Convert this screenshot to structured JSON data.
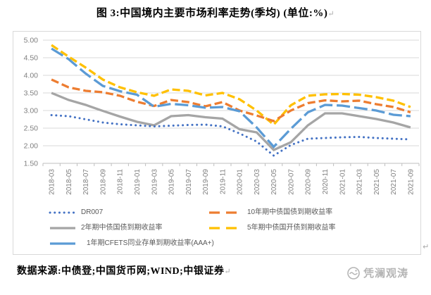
{
  "page": {
    "title": "图 3:中国境内主要市场利率走势(季均) (单位:%)",
    "paragraph_mark": "↵"
  },
  "chart_data": {
    "type": "line",
    "title": "中国境内主要市场利率走势(季均)",
    "unit": "%",
    "ylim": [
      1.5,
      5.0
    ],
    "y_ticks": [
      "5.00",
      "4.50",
      "4.00",
      "3.50",
      "3.00",
      "2.50",
      "2.00",
      "1.50"
    ],
    "grid": "horizontal",
    "legend_position": "bottom",
    "x_labels": [
      "2018-03",
      "2018-05",
      "2018-07",
      "2018-09",
      "2018-11",
      "2019-01",
      "2019-03",
      "2019-05",
      "2019-07",
      "2019-09",
      "2019-11",
      "2020-01",
      "2020-03",
      "2020-05",
      "2020-07",
      "2020-09",
      "2020-11",
      "2021-01",
      "2021-03",
      "2021-05",
      "2021-07",
      "2021-09"
    ],
    "series": [
      {
        "name": "DR007",
        "color": "#4472C4",
        "style": "dotted",
        "values": [
          2.87,
          2.84,
          2.75,
          2.66,
          2.61,
          2.58,
          2.55,
          2.57,
          2.59,
          2.6,
          2.55,
          2.35,
          2.12,
          1.72,
          2.02,
          2.2,
          2.22,
          2.24,
          2.25,
          2.22,
          2.2,
          2.18
        ]
      },
      {
        "name": "10年期中债国债到期收益率",
        "color": "#ED7D31",
        "style": "dashed",
        "values": [
          3.88,
          3.66,
          3.56,
          3.52,
          3.42,
          3.25,
          3.13,
          3.3,
          3.24,
          3.12,
          3.24,
          3.0,
          2.86,
          2.7,
          3.0,
          3.21,
          3.29,
          3.26,
          3.28,
          3.18,
          3.1,
          2.95
        ]
      },
      {
        "name": "2年期中债国债到期收益率",
        "color": "#A5A5A5",
        "style": "solid",
        "values": [
          3.5,
          3.3,
          3.16,
          2.99,
          2.83,
          2.68,
          2.58,
          2.84,
          2.87,
          2.81,
          2.77,
          2.47,
          2.38,
          1.88,
          2.1,
          2.58,
          2.92,
          2.92,
          2.84,
          2.76,
          2.66,
          2.52
        ]
      },
      {
        "name": "5年期中债国开债到期收益率",
        "color": "#FFC000",
        "style": "dashed",
        "values": [
          4.86,
          4.53,
          4.22,
          3.88,
          3.66,
          3.52,
          3.42,
          3.6,
          3.56,
          3.43,
          3.5,
          3.32,
          3.0,
          2.6,
          3.15,
          3.42,
          3.46,
          3.47,
          3.45,
          3.38,
          3.28,
          3.1
        ]
      },
      {
        "name": "1年期CFETS同业存单到期收益率(AAA+)",
        "color": "#5B9BD5",
        "style": "long-dash",
        "values": [
          4.76,
          4.46,
          4.05,
          3.7,
          3.55,
          3.45,
          3.11,
          3.19,
          3.15,
          3.08,
          3.1,
          2.98,
          2.52,
          1.97,
          2.48,
          2.95,
          3.16,
          3.14,
          3.07,
          3.0,
          2.88,
          2.84
        ]
      }
    ]
  },
  "footer": {
    "source": "数据来源:中债登;中国货币网;WIND;中银证券",
    "watermark": "凭澜观涛"
  }
}
